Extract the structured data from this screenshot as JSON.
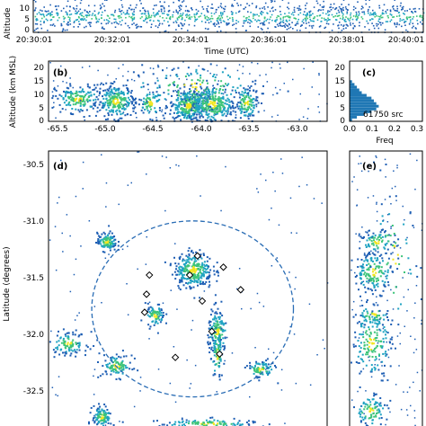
{
  "colors": {
    "src_low": "#1f5fb4",
    "src_mid": "#1fa3c2",
    "src_high": "#3cc47a",
    "src_peak": "#f2e51f",
    "ring": "#2a6db5",
    "hist": "#1f77b4"
  },
  "panel_a": {
    "ylabel": "Altitude",
    "yticks": [
      "10",
      "5",
      "0"
    ],
    "xticks": [
      "20:30:01",
      "20:32:01",
      "20:34:01",
      "20:36:01",
      "20:38:01",
      "20:40:01"
    ],
    "xlabel": "Time (UTC)"
  },
  "panel_b": {
    "label": "(b)",
    "ylabel": "Altitude (km MSL)",
    "yticks": [
      "20",
      "15",
      "10",
      "5",
      "0"
    ],
    "xticks": [
      "-65.5",
      "-65.0",
      "-64.5",
      "-64.0",
      "-63.5",
      "-63.0"
    ]
  },
  "panel_c": {
    "label": "(c)",
    "yticks": [
      "20",
      "15",
      "10",
      "5",
      "0"
    ],
    "xticks": [
      "0.0",
      "0.1",
      "0.2",
      "0.3"
    ],
    "xlabel": "Freq",
    "annotation": "61750 src"
  },
  "panel_d": {
    "label": "(d)",
    "ylabel": "Latitude (degrees)",
    "yticks": [
      "-30.5",
      "-31.0",
      "-31.5",
      "-32.0",
      "-32.5"
    ]
  },
  "panel_e": {
    "label": "(e)"
  },
  "chart_data": [
    {
      "type": "scatter",
      "panel": "a",
      "ylabel": "Altitude",
      "xlabel": "Time (UTC)",
      "x_range": [
        "20:30:01",
        "20:40:01"
      ],
      "ylim": [
        0,
        15
      ],
      "total_sources": 61750
    },
    {
      "type": "heatmap",
      "panel": "b",
      "ylabel": "Altitude (km MSL)",
      "xlim": [
        -65.6,
        -62.7
      ],
      "ylim": [
        0,
        22
      ],
      "clusters": [
        {
          "x": -65.3,
          "y": 8.5,
          "sx": 0.12,
          "sy": 2.5,
          "n": 160
        },
        {
          "x": -64.9,
          "y": 7.5,
          "sx": 0.1,
          "sy": 3.0,
          "n": 240
        },
        {
          "x": -64.55,
          "y": 7.0,
          "sx": 0.06,
          "sy": 2.5,
          "n": 70
        },
        {
          "x": -64.15,
          "y": 6.0,
          "sx": 0.1,
          "sy": 3.0,
          "n": 320
        },
        {
          "x": -63.9,
          "y": 6.5,
          "sx": 0.12,
          "sy": 3.5,
          "n": 300
        },
        {
          "x": -63.55,
          "y": 7.0,
          "sx": 0.06,
          "sy": 3.0,
          "n": 120
        },
        {
          "x": -64.1,
          "y": 13.0,
          "sx": 0.35,
          "sy": 4.0,
          "n": 140
        }
      ]
    },
    {
      "type": "bar",
      "panel": "c",
      "xlabel": "Freq",
      "xlim": [
        0,
        0.3
      ],
      "ylim": [
        0,
        22
      ],
      "altitudes_km": [
        0.5,
        1.5,
        2.5,
        3.5,
        4.5,
        5.5,
        6.5,
        7.5,
        8.5,
        9.5,
        10.5,
        11.5,
        12.5,
        13.5,
        14.5
      ],
      "freq": [
        0.01,
        0.03,
        0.06,
        0.09,
        0.11,
        0.12,
        0.11,
        0.1,
        0.09,
        0.07,
        0.05,
        0.04,
        0.03,
        0.02,
        0.01
      ]
    },
    {
      "type": "heatmap",
      "panel": "d",
      "ylabel": "Latitude (degrees)",
      "xlim": [
        -65.6,
        -62.7
      ],
      "ylim": [
        -32.82,
        -30.35
      ],
      "ring": {
        "x": -64.1,
        "y": -31.75,
        "r_lon": 1.05,
        "r_lat": 0.78
      },
      "clusters": [
        {
          "x": -65.0,
          "y": -31.15,
          "sx": 0.05,
          "sy": 0.04,
          "n": 120
        },
        {
          "x": -64.1,
          "y": -31.4,
          "sx": 0.1,
          "sy": 0.08,
          "n": 300
        },
        {
          "x": -64.5,
          "y": -31.8,
          "sx": 0.05,
          "sy": 0.05,
          "n": 80
        },
        {
          "x": -63.85,
          "y": -31.95,
          "sx": 0.05,
          "sy": 0.1,
          "n": 150
        },
        {
          "x": -63.85,
          "y": -32.15,
          "sx": 0.03,
          "sy": 0.12,
          "n": 70
        },
        {
          "x": -65.4,
          "y": -32.05,
          "sx": 0.1,
          "sy": 0.05,
          "n": 110
        },
        {
          "x": -64.9,
          "y": -32.25,
          "sx": 0.08,
          "sy": 0.05,
          "n": 100
        },
        {
          "x": -63.4,
          "y": -32.28,
          "sx": 0.07,
          "sy": 0.04,
          "n": 90
        },
        {
          "x": -65.05,
          "y": -32.7,
          "sx": 0.05,
          "sy": 0.05,
          "n": 110
        },
        {
          "x": -63.95,
          "y": -32.76,
          "sx": 0.25,
          "sy": 0.02,
          "n": 110
        }
      ],
      "stations": [
        {
          "x": -64.05,
          "y": -31.28
        },
        {
          "x": -63.78,
          "y": -31.38
        },
        {
          "x": -64.55,
          "y": -31.45
        },
        {
          "x": -64.13,
          "y": -31.45
        },
        {
          "x": -63.6,
          "y": -31.58
        },
        {
          "x": -64.58,
          "y": -31.62
        },
        {
          "x": -64.0,
          "y": -31.68
        },
        {
          "x": -64.6,
          "y": -31.78
        },
        {
          "x": -63.9,
          "y": -31.95
        },
        {
          "x": -64.28,
          "y": -32.18
        },
        {
          "x": -63.82,
          "y": -32.15
        }
      ]
    },
    {
      "type": "heatmap",
      "panel": "e",
      "ylim": [
        -32.82,
        -30.35
      ],
      "xlim": [
        0,
        22
      ],
      "clusters": [
        {
          "x": 8,
          "y": -31.15,
          "sx": 2.5,
          "sy": 0.05,
          "n": 80
        },
        {
          "x": 7,
          "y": -31.42,
          "sx": 3,
          "sy": 0.09,
          "n": 160
        },
        {
          "x": 7,
          "y": -31.8,
          "sx": 2.5,
          "sy": 0.05,
          "n": 60
        },
        {
          "x": 6.5,
          "y": -32.05,
          "sx": 3,
          "sy": 0.15,
          "n": 160
        },
        {
          "x": 6,
          "y": -32.65,
          "sx": 2.5,
          "sy": 0.07,
          "n": 100
        },
        {
          "x": 13,
          "y": -31.3,
          "sx": 4,
          "sy": 0.3,
          "n": 50
        }
      ]
    }
  ]
}
